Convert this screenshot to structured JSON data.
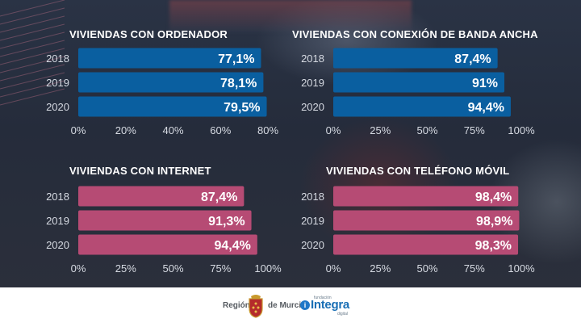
{
  "colors": {
    "blue_bar": "#0a5fa0",
    "pink_bar": "#b64b74"
  },
  "chart_data": [
    {
      "type": "bar",
      "orientation": "horizontal",
      "title": "VIVIENDAS CON ORDENADOR",
      "categories": [
        "2018",
        "2019",
        "2020"
      ],
      "values": [
        77.1,
        78.1,
        79.5
      ],
      "value_labels": [
        "77,1%",
        "78,1%",
        "79,5%"
      ],
      "xlim": [
        0,
        80
      ],
      "xticks": [
        0,
        20,
        40,
        60,
        80
      ],
      "xtick_labels": [
        "0%",
        "20%",
        "40%",
        "60%",
        "80%"
      ],
      "color": "#0a5fa0"
    },
    {
      "type": "bar",
      "orientation": "horizontal",
      "title": "VIVIENDAS CON CONEXIÓN DE BANDA ANCHA",
      "categories": [
        "2018",
        "2019",
        "2020"
      ],
      "values": [
        87.4,
        91,
        94.4
      ],
      "value_labels": [
        "87,4%",
        "91%",
        "94,4%"
      ],
      "xlim": [
        0,
        100
      ],
      "xticks": [
        0,
        25,
        50,
        75,
        100
      ],
      "xtick_labels": [
        "0%",
        "25%",
        "50%",
        "75%",
        "100%"
      ],
      "color": "#0a5fa0"
    },
    {
      "type": "bar",
      "orientation": "horizontal",
      "title": "VIVIENDAS CON INTERNET",
      "categories": [
        "2018",
        "2019",
        "2020"
      ],
      "values": [
        87.4,
        91.3,
        94.4
      ],
      "value_labels": [
        "87,4%",
        "91,3%",
        "94,4%"
      ],
      "xlim": [
        0,
        100
      ],
      "xticks": [
        0,
        25,
        50,
        75,
        100
      ],
      "xtick_labels": [
        "0%",
        "25%",
        "50%",
        "75%",
        "100%"
      ],
      "color": "#b64b74"
    },
    {
      "type": "bar",
      "orientation": "horizontal",
      "title": "VIVIENDAS CON TELÉFONO MÓVIL",
      "categories": [
        "2018",
        "2019",
        "2020"
      ],
      "values": [
        98.4,
        98.9,
        98.3
      ],
      "value_labels": [
        "98,4%",
        "98,9%",
        "98,3%"
      ],
      "xlim": [
        0,
        100
      ],
      "xticks": [
        0,
        25,
        50,
        75,
        100
      ],
      "xtick_labels": [
        "0%",
        "25%",
        "50%",
        "75%",
        "100%"
      ],
      "color": "#b64b74"
    }
  ],
  "footer": {
    "region_part1": "Región",
    "region_part2": "de Murcia",
    "integra_small": "fundación",
    "integra_name": "Integra",
    "integra_sub": "digital",
    "integra_icon_glyph": "i"
  }
}
